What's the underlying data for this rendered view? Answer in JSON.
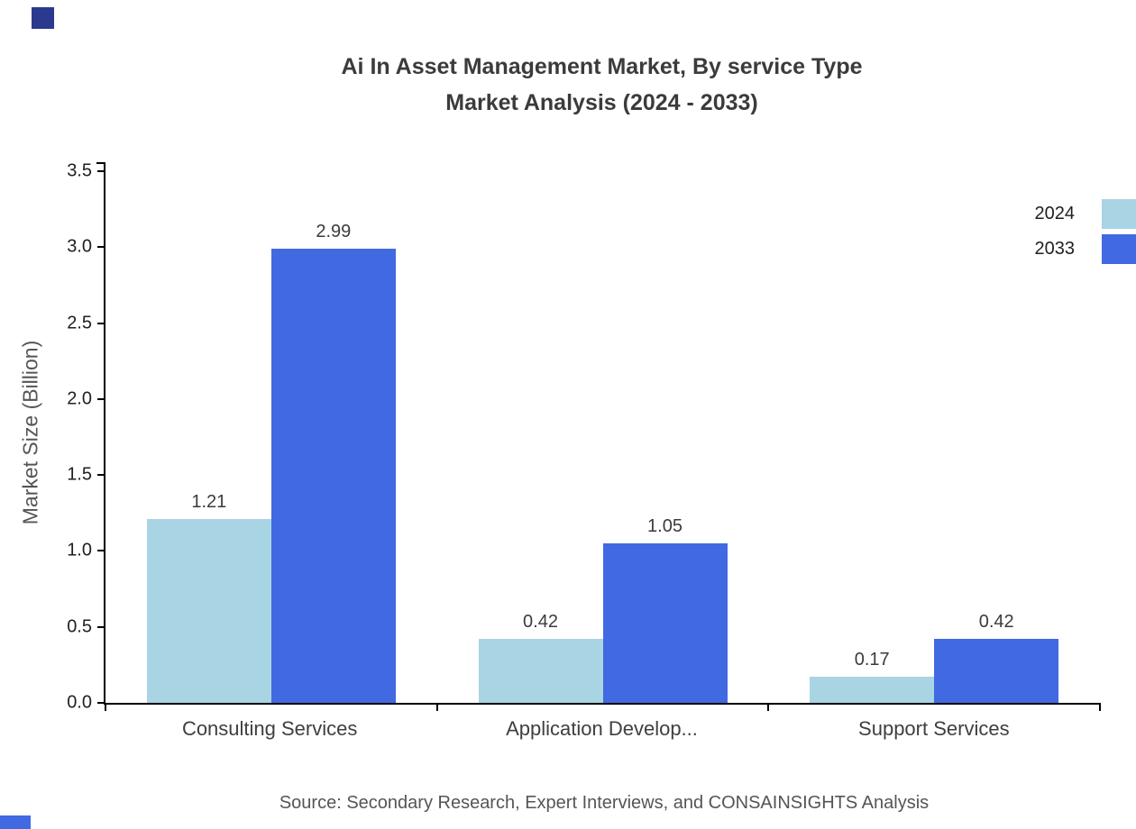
{
  "title": {
    "line1": "Ai In Asset Management Market, By service Type",
    "line2": "Market Analysis (2024 - 2033)"
  },
  "source": "Source: Secondary Research, Expert Interviews, and CONSAINSIGHTS Analysis",
  "colors": {
    "series_2024": "#a9d4e4",
    "series_2033": "#4169e1",
    "brand_top": "#2b3a8f",
    "brand_bottom": "#4169e1"
  },
  "chart_data": {
    "type": "bar",
    "title": "Ai In Asset Management Market, By service Type Market Analysis (2024 - 2033)",
    "categories": [
      "Consulting Services",
      "Application Develop...",
      "Support Services"
    ],
    "series": [
      {
        "name": "2024",
        "color": "#a9d4e4",
        "values": [
          1.21,
          0.42,
          0.17
        ]
      },
      {
        "name": "2033",
        "color": "#4169e1",
        "values": [
          2.99,
          1.05,
          0.42
        ]
      }
    ],
    "xlabel": "",
    "ylabel": "Market Size (Billion)",
    "ylim": [
      0,
      3.5
    ],
    "y_ticks": [
      0.0,
      0.5,
      1.0,
      1.5,
      2.0,
      2.5,
      3.0,
      3.5
    ],
    "grid": false,
    "legend_position": "top-right",
    "value_label_decimals": 2
  }
}
